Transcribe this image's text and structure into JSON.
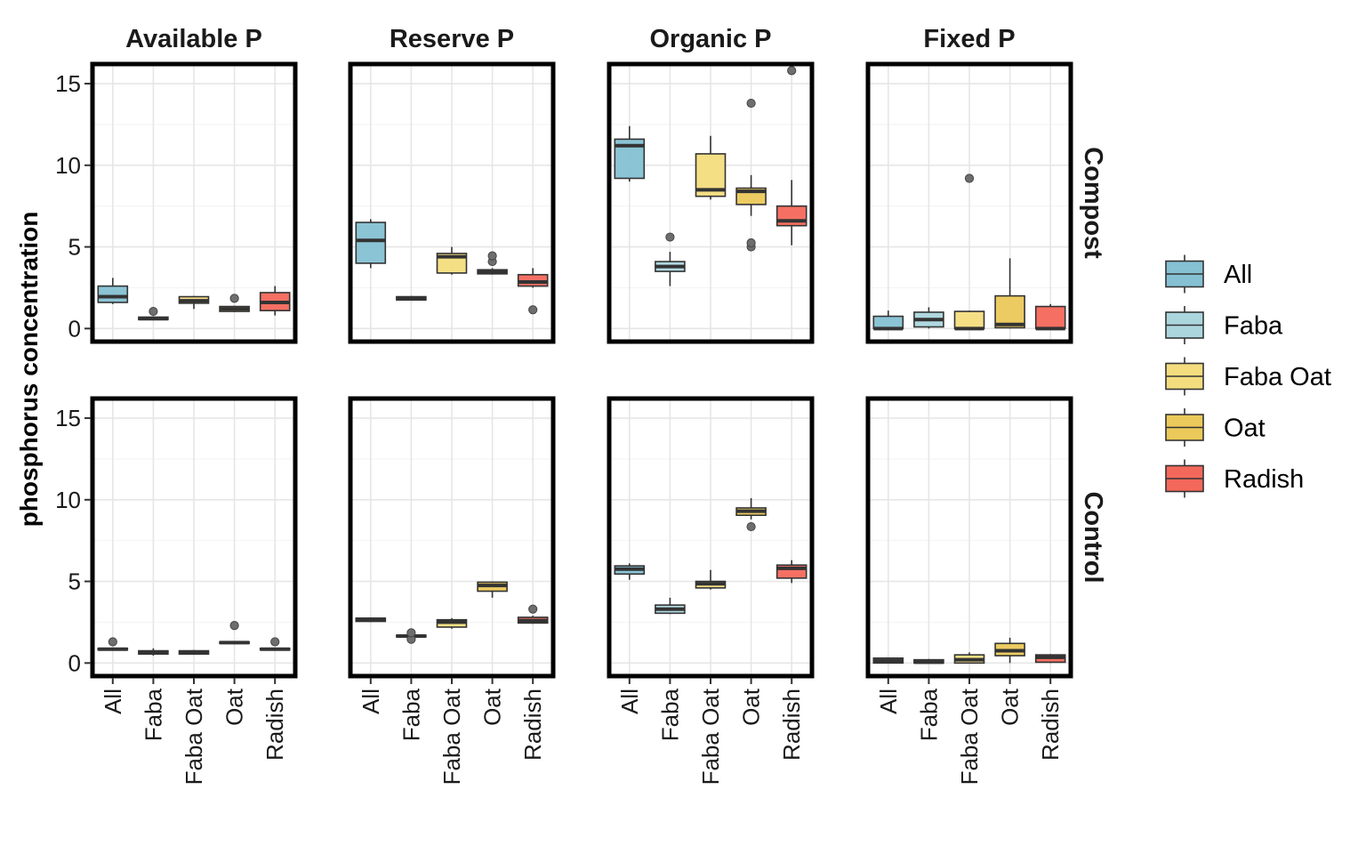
{
  "chart_data": {
    "type": "boxplot",
    "ylabel": "phosphorus concentration",
    "ylim": [
      -0.8,
      16.2
    ],
    "yticks": [
      0,
      5,
      10,
      15
    ],
    "column_facets": [
      "Available P",
      "Reserve P",
      "Organic P",
      "Fixed P"
    ],
    "row_facets": [
      "Compost",
      "Control"
    ],
    "categories": [
      "All",
      "Faba",
      "Faba Oat",
      "Oat",
      "Radish"
    ],
    "legend": {
      "position": "right",
      "entries": [
        "All",
        "Faba",
        "Faba Oat",
        "Oat",
        "Radish"
      ]
    },
    "colors": {
      "All": "#85c1d3",
      "Faba": "#acd6de",
      "Faba Oat": "#f3dd7e",
      "Oat": "#ebc95a",
      "Radish": "#f4685b"
    },
    "grid": true,
    "panels": [
      {
        "row": "Compost",
        "col": "Available P",
        "boxes": [
          {
            "category": "All",
            "whisker_low": 1.5,
            "q1": 1.6,
            "median": 1.95,
            "q3": 2.6,
            "whisker_high": 3.1,
            "outliers": []
          },
          {
            "category": "Faba",
            "whisker_low": 0.5,
            "q1": 0.55,
            "median": 0.6,
            "q3": 0.7,
            "whisker_high": 0.75,
            "outliers": [
              1.05
            ]
          },
          {
            "category": "Faba Oat",
            "whisker_low": 1.2,
            "q1": 1.55,
            "median": 1.7,
            "q3": 1.95,
            "whisker_high": 2.0,
            "outliers": []
          },
          {
            "category": "Oat",
            "whisker_low": 1.0,
            "q1": 1.05,
            "median": 1.2,
            "q3": 1.35,
            "whisker_high": 1.4,
            "outliers": [
              1.85
            ]
          },
          {
            "category": "Radish",
            "whisker_low": 0.8,
            "q1": 1.1,
            "median": 1.6,
            "q3": 2.2,
            "whisker_high": 2.6,
            "outliers": []
          }
        ]
      },
      {
        "row": "Compost",
        "col": "Reserve P",
        "boxes": [
          {
            "category": "All",
            "whisker_low": 3.7,
            "q1": 4.0,
            "median": 5.4,
            "q3": 6.5,
            "whisker_high": 6.7,
            "outliers": []
          },
          {
            "category": "Faba",
            "whisker_low": 1.7,
            "q1": 1.75,
            "median": 1.85,
            "q3": 1.95,
            "whisker_high": 2.0,
            "outliers": []
          },
          {
            "category": "Faba Oat",
            "whisker_low": 3.3,
            "q1": 3.4,
            "median": 4.4,
            "q3": 4.6,
            "whisker_high": 5.0,
            "outliers": []
          },
          {
            "category": "Oat",
            "whisker_low": 3.3,
            "q1": 3.35,
            "median": 3.45,
            "q3": 3.6,
            "whisker_high": 3.7,
            "outliers": [
              4.1,
              4.45
            ]
          },
          {
            "category": "Radish",
            "whisker_low": 2.5,
            "q1": 2.6,
            "median": 2.85,
            "q3": 3.3,
            "whisker_high": 3.7,
            "outliers": [
              1.15
            ]
          }
        ]
      },
      {
        "row": "Compost",
        "col": "Organic P",
        "boxes": [
          {
            "category": "All",
            "whisker_low": 9.0,
            "q1": 9.2,
            "median": 11.2,
            "q3": 11.6,
            "whisker_high": 12.4,
            "outliers": []
          },
          {
            "category": "Faba",
            "whisker_low": 2.6,
            "q1": 3.5,
            "median": 3.8,
            "q3": 4.1,
            "whisker_high": 4.7,
            "outliers": [
              5.6
            ]
          },
          {
            "category": "Faba Oat",
            "whisker_low": 7.9,
            "q1": 8.1,
            "median": 8.5,
            "q3": 10.7,
            "whisker_high": 11.8,
            "outliers": []
          },
          {
            "category": "Oat",
            "whisker_low": 6.9,
            "q1": 7.6,
            "median": 8.4,
            "q3": 8.6,
            "whisker_high": 9.4,
            "outliers": [
              5.0,
              5.25,
              13.8
            ]
          },
          {
            "category": "Radish",
            "whisker_low": 5.1,
            "q1": 6.3,
            "median": 6.6,
            "q3": 7.5,
            "whisker_high": 9.1,
            "outliers": [
              15.8
            ]
          }
        ]
      },
      {
        "row": "Compost",
        "col": "Fixed P",
        "boxes": [
          {
            "category": "All",
            "whisker_low": 0.0,
            "q1": 0.0,
            "median": 0.0,
            "q3": 0.75,
            "whisker_high": 1.1,
            "outliers": []
          },
          {
            "category": "Faba",
            "whisker_low": 0.0,
            "q1": 0.1,
            "median": 0.55,
            "q3": 1.0,
            "whisker_high": 1.3,
            "outliers": []
          },
          {
            "category": "Faba Oat",
            "whisker_low": 0.0,
            "q1": 0.0,
            "median": 0.0,
            "q3": 1.05,
            "whisker_high": 1.1,
            "outliers": [
              9.2
            ]
          },
          {
            "category": "Oat",
            "whisker_low": 0.0,
            "q1": 0.05,
            "median": 0.25,
            "q3": 2.0,
            "whisker_high": 4.3,
            "outliers": []
          },
          {
            "category": "Radish",
            "whisker_low": 0.0,
            "q1": 0.0,
            "median": 0.0,
            "q3": 1.35,
            "whisker_high": 1.5,
            "outliers": []
          }
        ]
      },
      {
        "row": "Control",
        "col": "Available P",
        "boxes": [
          {
            "category": "All",
            "whisker_low": 0.75,
            "q1": 0.8,
            "median": 0.85,
            "q3": 0.9,
            "whisker_high": 0.95,
            "outliers": [
              1.3
            ]
          },
          {
            "category": "Faba",
            "whisker_low": 0.45,
            "q1": 0.55,
            "median": 0.65,
            "q3": 0.75,
            "whisker_high": 0.9,
            "outliers": []
          },
          {
            "category": "Faba Oat",
            "whisker_low": 0.5,
            "q1": 0.55,
            "median": 0.65,
            "q3": 0.75,
            "whisker_high": 0.8,
            "outliers": []
          },
          {
            "category": "Oat",
            "whisker_low": 1.15,
            "q1": 1.2,
            "median": 1.25,
            "q3": 1.3,
            "whisker_high": 1.35,
            "outliers": [
              2.3
            ]
          },
          {
            "category": "Radish",
            "whisker_low": 0.75,
            "q1": 0.8,
            "median": 0.85,
            "q3": 0.9,
            "whisker_high": 0.95,
            "outliers": [
              1.3
            ]
          }
        ]
      },
      {
        "row": "Control",
        "col": "Reserve P",
        "boxes": [
          {
            "category": "All",
            "whisker_low": 2.5,
            "q1": 2.55,
            "median": 2.65,
            "q3": 2.75,
            "whisker_high": 2.8,
            "outliers": []
          },
          {
            "category": "Faba",
            "whisker_low": 1.6,
            "q1": 1.6,
            "median": 1.65,
            "q3": 1.7,
            "whisker_high": 1.75,
            "outliers": [
              1.45,
              1.85
            ]
          },
          {
            "category": "Faba Oat",
            "whisker_low": 2.1,
            "q1": 2.2,
            "median": 2.5,
            "q3": 2.65,
            "whisker_high": 2.75,
            "outliers": []
          },
          {
            "category": "Oat",
            "whisker_low": 4.0,
            "q1": 4.4,
            "median": 4.75,
            "q3": 4.95,
            "whisker_high": 5.0,
            "outliers": []
          },
          {
            "category": "Radish",
            "whisker_low": 2.4,
            "q1": 2.45,
            "median": 2.6,
            "q3": 2.8,
            "whisker_high": 2.9,
            "outliers": [
              3.3
            ]
          }
        ]
      },
      {
        "row": "Control",
        "col": "Organic P",
        "boxes": [
          {
            "category": "All",
            "whisker_low": 5.1,
            "q1": 5.45,
            "median": 5.75,
            "q3": 5.95,
            "whisker_high": 6.1,
            "outliers": []
          },
          {
            "category": "Faba",
            "whisker_low": 3.0,
            "q1": 3.05,
            "median": 3.3,
            "q3": 3.55,
            "whisker_high": 4.0,
            "outliers": []
          },
          {
            "category": "Faba Oat",
            "whisker_low": 4.5,
            "q1": 4.6,
            "median": 4.85,
            "q3": 5.0,
            "whisker_high": 5.7,
            "outliers": []
          },
          {
            "category": "Oat",
            "whisker_low": 8.8,
            "q1": 9.05,
            "median": 9.3,
            "q3": 9.5,
            "whisker_high": 10.1,
            "outliers": [
              8.35
            ]
          },
          {
            "category": "Radish",
            "whisker_low": 4.9,
            "q1": 5.2,
            "median": 5.8,
            "q3": 6.0,
            "whisker_high": 6.3,
            "outliers": []
          }
        ]
      },
      {
        "row": "Control",
        "col": "Fixed P",
        "boxes": [
          {
            "category": "All",
            "whisker_low": 0.0,
            "q1": 0.0,
            "median": 0.15,
            "q3": 0.3,
            "whisker_high": 0.35,
            "outliers": []
          },
          {
            "category": "Faba",
            "whisker_low": 0.0,
            "q1": 0.0,
            "median": 0.05,
            "q3": 0.2,
            "whisker_high": 0.25,
            "outliers": []
          },
          {
            "category": "Faba Oat",
            "whisker_low": 0.0,
            "q1": 0.0,
            "median": 0.2,
            "q3": 0.5,
            "whisker_high": 0.65,
            "outliers": []
          },
          {
            "category": "Oat",
            "whisker_low": 0.0,
            "q1": 0.45,
            "median": 0.75,
            "q3": 1.2,
            "whisker_high": 1.55,
            "outliers": []
          },
          {
            "category": "Radish",
            "whisker_low": 0.0,
            "q1": 0.05,
            "median": 0.35,
            "q3": 0.5,
            "whisker_high": 0.55,
            "outliers": []
          }
        ]
      }
    ]
  }
}
